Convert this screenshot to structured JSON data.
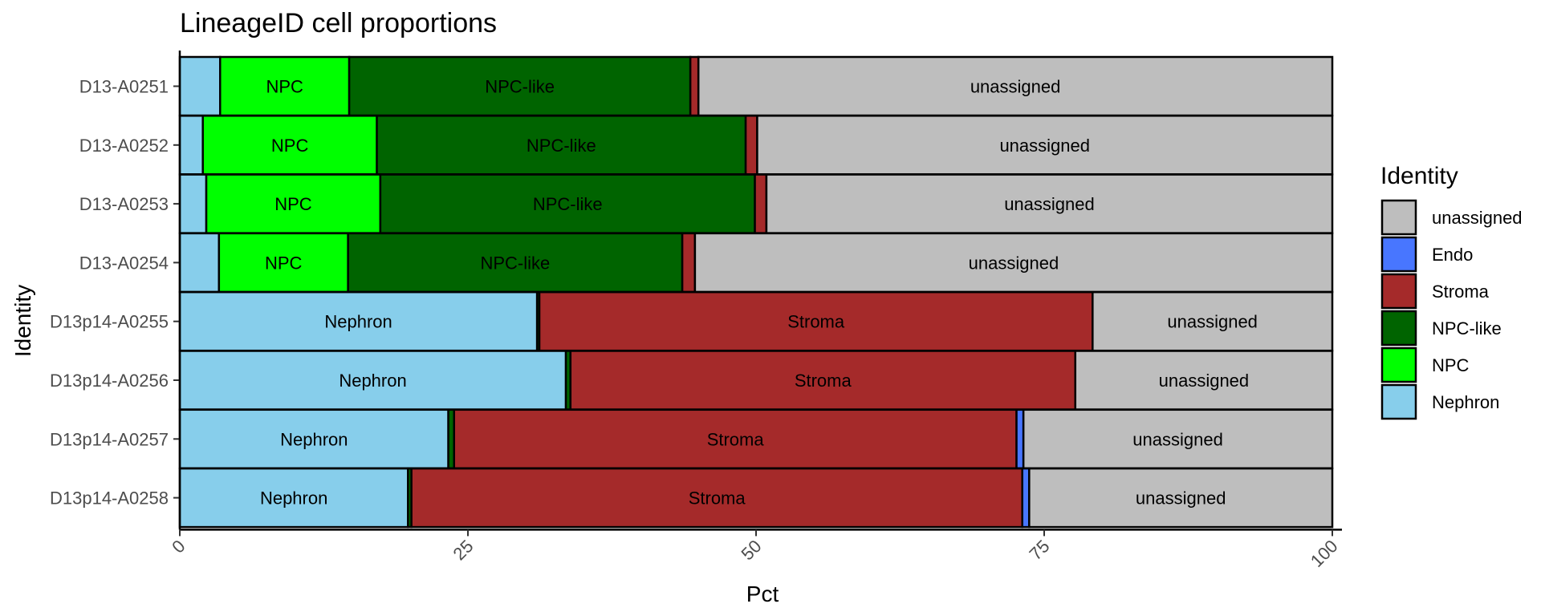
{
  "chart_data": {
    "type": "bar",
    "orientation": "horizontal",
    "stacked": true,
    "title": "LineageID cell proportions",
    "xlabel": "Pct",
    "ylabel": "Identity",
    "xlim": [
      0,
      100
    ],
    "xticks": [
      "0",
      "25",
      "50",
      "75",
      "100"
    ],
    "tick_label_rotation": "45deg",
    "grid": false,
    "legend_title": "Identity",
    "legend_position": "right",
    "categories": [
      "D13-A0251",
      "D13-A0252",
      "D13-A0253",
      "D13-A0254",
      "D13p14-A0255",
      "D13p14-A0256",
      "D13p14-A0257",
      "D13p14-A0258"
    ],
    "stack_order_from_left": [
      "Nephron",
      "NPC",
      "NPC-like",
      "Stroma",
      "Endo",
      "unassigned"
    ],
    "legend_order": [
      "unassigned",
      "Endo",
      "Stroma",
      "NPC-like",
      "NPC",
      "Nephron"
    ],
    "colors": {
      "Nephron": "#87CEEB",
      "NPC": "#00FF00",
      "NPC-like": "#006400",
      "Stroma": "#A52A2A",
      "Endo": "#4876FF",
      "unassigned": "#BEBEBE"
    },
    "series": [
      {
        "name": "Nephron",
        "values": [
          3.5,
          2.0,
          2.3,
          3.4,
          31.0,
          33.5,
          23.3,
          19.8
        ]
      },
      {
        "name": "NPC",
        "values": [
          11.2,
          15.1,
          15.1,
          11.2,
          0,
          0,
          0,
          0
        ]
      },
      {
        "name": "NPC-like",
        "values": [
          29.6,
          32.0,
          32.5,
          29.0,
          0.2,
          0.4,
          0.5,
          0.3
        ]
      },
      {
        "name": "Stroma",
        "values": [
          0.7,
          1.0,
          1.0,
          1.1,
          48.0,
          43.8,
          48.8,
          53.0
        ]
      },
      {
        "name": "Endo",
        "values": [
          0,
          0,
          0,
          0,
          0,
          0,
          0.6,
          0.6
        ]
      },
      {
        "name": "unassigned",
        "values": [
          55.0,
          49.9,
          49.1,
          55.3,
          20.8,
          22.3,
          26.8,
          26.3
        ]
      }
    ],
    "segment_label_min_pct": 5
  }
}
